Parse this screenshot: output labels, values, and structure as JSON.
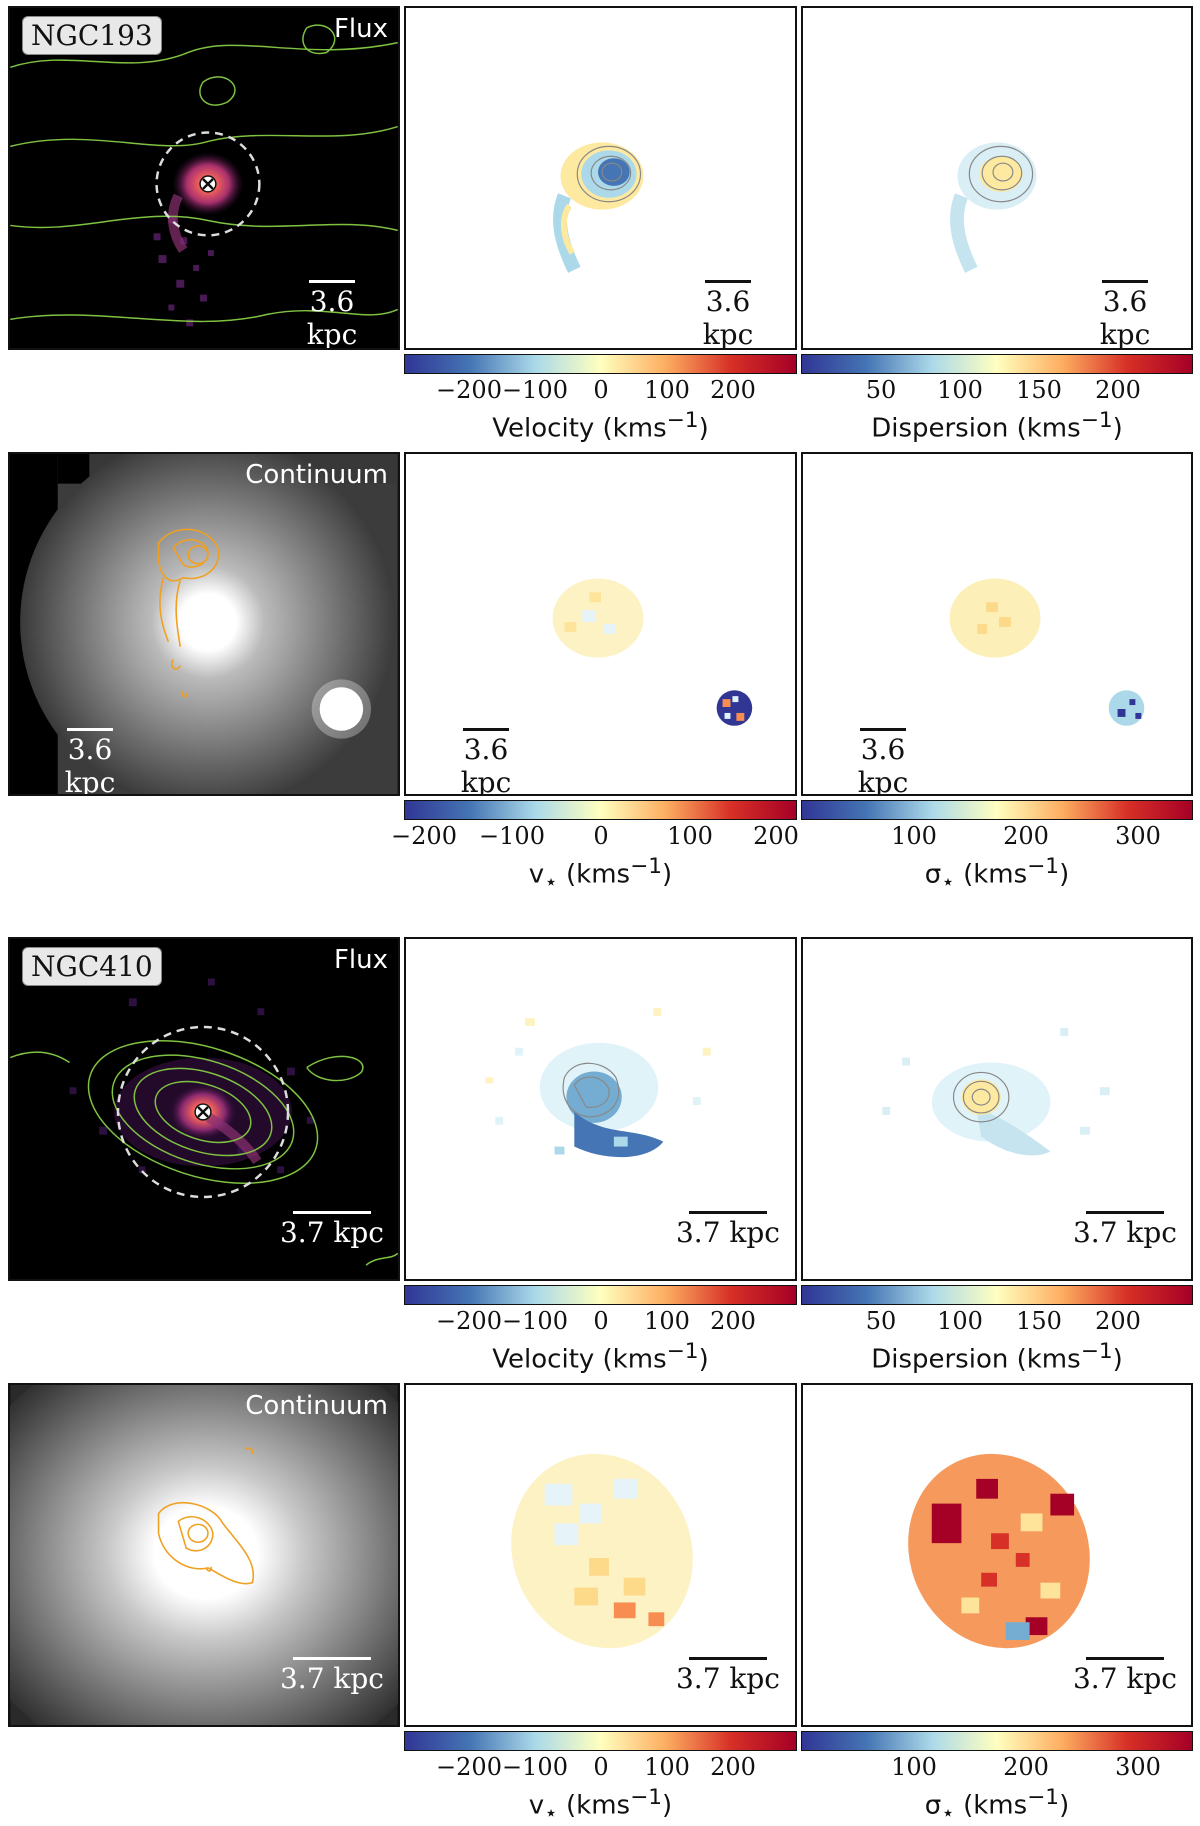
{
  "galaxies": [
    {
      "name": "NGC193",
      "flux_label": "Flux",
      "continuum_label": "Continuum",
      "scale_text": "3.6 kpc",
      "gas_velocity": {
        "label": "Velocity (kms",
        "ticks": [
          "−200",
          "−100",
          "0",
          "100",
          "200"
        ]
      },
      "gas_dispersion": {
        "label": "Dispersion (kms",
        "ticks": [
          "50",
          "100",
          "150",
          "200"
        ]
      },
      "star_velocity": {
        "label": "v",
        "ticks": [
          "−200",
          "−100",
          "0",
          "100",
          "200"
        ]
      },
      "star_dispersion": {
        "label": "σ",
        "ticks": [
          "100",
          "200",
          "300"
        ]
      }
    },
    {
      "name": "NGC410",
      "flux_label": "Flux",
      "continuum_label": "Continuum",
      "scale_text": "3.7 kpc",
      "gas_velocity": {
        "label": "Velocity (kms",
        "ticks": [
          "−200",
          "−100",
          "0",
          "100",
          "200"
        ]
      },
      "gas_dispersion": {
        "label": "Dispersion (kms",
        "ticks": [
          "50",
          "100",
          "150",
          "200"
        ]
      },
      "star_velocity": {
        "label": "v",
        "ticks": [
          "−200",
          "−100",
          "0",
          "100",
          "200"
        ]
      },
      "star_dispersion": {
        "label": "σ",
        "ticks": [
          "100",
          "200",
          "300"
        ]
      }
    }
  ],
  "units": {
    "kms": "(kms",
    "minus_one": "−1",
    "close": ")",
    "star": "⋆"
  },
  "colors": {
    "rdylbu_low": "#313695",
    "rdylbu_mid": "#ffffbf",
    "rdylbu_high": "#a50026",
    "contour_green": "#7fc241",
    "contour_orange": "#f0a020"
  }
}
